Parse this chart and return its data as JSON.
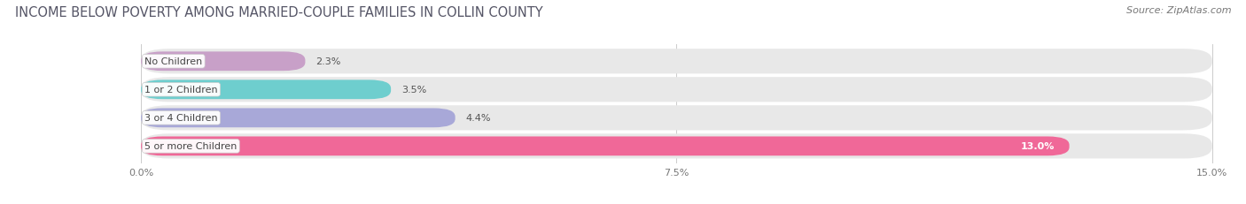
{
  "title": "INCOME BELOW POVERTY AMONG MARRIED-COUPLE FAMILIES IN COLLIN COUNTY",
  "source": "Source: ZipAtlas.com",
  "categories": [
    "No Children",
    "1 or 2 Children",
    "3 or 4 Children",
    "5 or more Children"
  ],
  "values": [
    2.3,
    3.5,
    4.4,
    13.0
  ],
  "bar_colors": [
    "#c8a0c8",
    "#6ecece",
    "#a8a8d8",
    "#f06898"
  ],
  "bar_bg_color": "#e8e8e8",
  "xlim_max": 15.0,
  "xlim_start": -1.8,
  "xticks": [
    0.0,
    7.5,
    15.0
  ],
  "xtick_labels": [
    "0.0%",
    "7.5%",
    "15.0%"
  ],
  "title_fontsize": 10.5,
  "source_fontsize": 8,
  "tick_fontsize": 8,
  "value_label_fontsize": 8,
  "cat_label_fontsize": 8,
  "figsize": [
    14.06,
    2.32
  ],
  "dpi": 100,
  "bg_color": "#ffffff"
}
